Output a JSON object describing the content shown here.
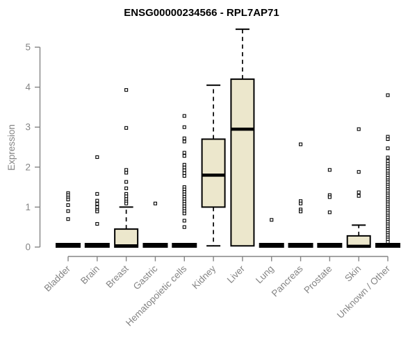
{
  "title": "ENSG00000234566 - RPL7AP71",
  "colors": {
    "background": "#FFFFFF",
    "box_fill": "#ECE7CC",
    "box_stroke": "#000000",
    "axis": "#848484",
    "title_text": "#000000"
  },
  "chart_data": {
    "type": "boxplot",
    "title": "ENSG00000234566 - RPL7AP71",
    "xlabel": "",
    "ylabel": "Expression",
    "ylim": [
      0,
      5.5
    ],
    "yticks": [
      0,
      1,
      2,
      3,
      4,
      5
    ],
    "grid": false,
    "legend": false,
    "categories": [
      "Bladder",
      "Brain",
      "Breast",
      "Gastric",
      "Hematopoietic cells",
      "Kidney",
      "Liver",
      "Lung",
      "Pancreas",
      "Prostate",
      "Skin",
      "Unknown / Other"
    ],
    "boxes": [
      {
        "category": "Bladder",
        "q1": 0,
        "median": 0,
        "q3": 0.04,
        "whisker_low": 0,
        "whisker_high": 0.04,
        "outliers": [
          1.35,
          1.3,
          1.24,
          1.19,
          1.05,
          0.9,
          0.7
        ]
      },
      {
        "category": "Brain",
        "q1": 0,
        "median": 0,
        "q3": 0.04,
        "whisker_low": 0,
        "whisker_high": 0.04,
        "outliers": [
          2.25,
          1.33,
          1.16,
          1.08,
          1.0,
          0.93,
          0.89,
          0.58
        ]
      },
      {
        "category": "Breast",
        "q1": 0,
        "median": 0.03,
        "q3": 0.45,
        "whisker_low": 0,
        "whisker_high": 1.0,
        "outliers": [
          3.93,
          2.98,
          1.93,
          1.86,
          1.63,
          1.47,
          1.33,
          1.27,
          1.2,
          1.14,
          1.09
        ]
      },
      {
        "category": "Gastric",
        "q1": 0,
        "median": 0,
        "q3": 0.04,
        "whisker_low": 0,
        "whisker_high": 0.04,
        "outliers": [
          1.09
        ]
      },
      {
        "category": "Hematopoietic cells",
        "q1": 0,
        "median": 0,
        "q3": 0.04,
        "whisker_low": 0,
        "whisker_high": 0.04,
        "outliers": [
          3.28,
          3.0,
          2.72,
          2.64,
          2.36,
          2.28,
          2.06,
          1.99,
          1.92,
          1.85,
          1.78,
          1.5,
          1.44,
          1.38,
          1.32,
          1.26,
          1.2,
          1.14,
          1.08,
          1.02,
          0.96,
          0.9,
          0.84,
          0.66,
          0.5
        ]
      },
      {
        "category": "Kidney",
        "q1": 1.0,
        "median": 1.8,
        "q3": 2.7,
        "whisker_low": 0.03,
        "whisker_high": 4.05,
        "outliers": []
      },
      {
        "category": "Liver",
        "q1": 0.03,
        "median": 2.95,
        "q3": 4.2,
        "whisker_low": 0.03,
        "whisker_high": 5.45,
        "outliers": []
      },
      {
        "category": "Lung",
        "q1": 0,
        "median": 0,
        "q3": 0.04,
        "whisker_low": 0,
        "whisker_high": 0.04,
        "outliers": [
          0.68
        ]
      },
      {
        "category": "Pancreas",
        "q1": 0,
        "median": 0,
        "q3": 0.04,
        "whisker_low": 0,
        "whisker_high": 0.04,
        "outliers": [
          2.57,
          1.15,
          1.09,
          0.94,
          0.89
        ]
      },
      {
        "category": "Prostate",
        "q1": 0,
        "median": 0,
        "q3": 0.04,
        "whisker_low": 0,
        "whisker_high": 0.04,
        "outliers": [
          1.93,
          1.3,
          1.25,
          0.87
        ]
      },
      {
        "category": "Skin",
        "q1": 0,
        "median": 0.02,
        "q3": 0.28,
        "whisker_low": 0,
        "whisker_high": 0.55,
        "outliers": [
          2.95,
          1.88,
          1.37,
          1.28
        ]
      },
      {
        "category": "Unknown / Other",
        "q1": 0,
        "median": 0,
        "q3": 0.04,
        "whisker_low": 0,
        "whisker_high": 0.04,
        "outliers": [
          3.8,
          2.76,
          2.7,
          2.47,
          2.24,
          2.15,
          2.08,
          2.02,
          1.96,
          1.9,
          1.84,
          1.79,
          1.73,
          1.67,
          1.62,
          1.56,
          1.51,
          1.45,
          1.4,
          1.34,
          1.29,
          1.23,
          1.18,
          1.12,
          1.07,
          1.01,
          0.96,
          0.9,
          0.85,
          0.79,
          0.74,
          0.68,
          0.63,
          0.57,
          0.52,
          0.46,
          0.41,
          0.35,
          0.3,
          0.24,
          0.19,
          0.13
        ]
      }
    ]
  }
}
